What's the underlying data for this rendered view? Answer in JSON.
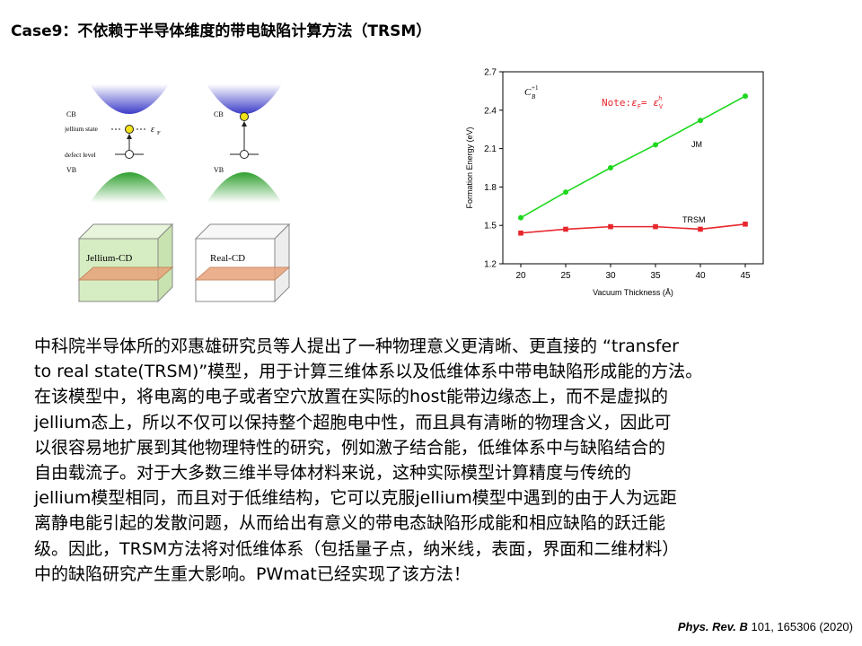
{
  "slide": {
    "title": "Case9：不依赖于半导体维度的带电缺陷计算方法（TRSM）"
  },
  "schematic": {
    "cb_label": "CB",
    "vb_label": "VB",
    "jellium_state_label": "jellium state",
    "defect_level_label": "defect level",
    "fermi_label": "ε",
    "fermi_sub": "F",
    "box_left_label": "Jellium-CD",
    "box_right_label": "Real-CD",
    "colors": {
      "cb": "#3c3cc8",
      "vb": "#2fa02f",
      "electron": "#f2e21a",
      "slab": "#e8a37a",
      "box_left": "#d6ecc2",
      "box_right": "#ffffff"
    }
  },
  "chart_data": {
    "type": "line",
    "xlabel": "Vacuum Thickness (Å)",
    "ylabel": "Formation Energy (eV)",
    "x": [
      20,
      25,
      30,
      35,
      40,
      45
    ],
    "xlim": [
      18,
      47
    ],
    "ylim": [
      1.2,
      2.7
    ],
    "x_ticks": [
      "20",
      "25",
      "30",
      "35",
      "40",
      "45"
    ],
    "y_ticks": [
      "1.2",
      "1.5",
      "1.8",
      "2.1",
      "2.4",
      "2.7"
    ],
    "grid": false,
    "series": [
      {
        "name": "JM",
        "color": "#1ed81e",
        "marker": "circle",
        "values": [
          1.56,
          1.76,
          1.95,
          2.13,
          2.32,
          2.51
        ]
      },
      {
        "name": "TRSM",
        "color": "#e8262c",
        "marker": "square",
        "values": [
          1.44,
          1.47,
          1.49,
          1.49,
          1.47,
          1.51
        ]
      }
    ],
    "annotations": {
      "defect_base": "C",
      "defect_sub": "B",
      "defect_sup": "+1",
      "note_prefix": "Note:",
      "note_eps_f": "ε",
      "note_eps_f_sub": "F",
      "note_eq": "= ",
      "note_eps_v": "ε",
      "note_eps_v_sub": "V",
      "note_eps_v_sup": "h",
      "note_color": "#e8262c"
    }
  },
  "body": {
    "lines": [
      "中科院半导体所的邓惠雄研究员等人提出了一种物理意义更清晰、更直接的 “transfer",
      "to real state(TRSM)”模型，用于计算三维体系以及低维体系中带电缺陷形成能的方法。",
      "在该模型中，将电离的电子或者空穴放置在实际的host能带边缘态上，而不是虚拟的",
      "jellium态上，所以不仅可以保持整个超胞电中性，而且具有清晰的物理含义，因此可",
      "以很容易地扩展到其他物理特性的研究，例如激子结合能，低维体系中与缺陷结合的",
      "自由载流子。对于大多数三维半导体材料来说，这种实际模型计算精度与传统的",
      "jellium模型相同，而且对于低维结构，它可以克服jellium模型中遇到的由于人为远距",
      "离静电能引起的发散问题，从而给出有意义的带电态缺陷形成能和相应缺陷的跃迁能",
      "级。因此，TRSM方法将对低维体系（包括量子点，纳米线，表面，界面和二维材料）",
      "中的缺陷研究产生重大影响。PWmat已经实现了该方法！"
    ]
  },
  "citation": {
    "journal": "Phys. Rev. B",
    "rest": " 101, 165306 (2020)"
  }
}
